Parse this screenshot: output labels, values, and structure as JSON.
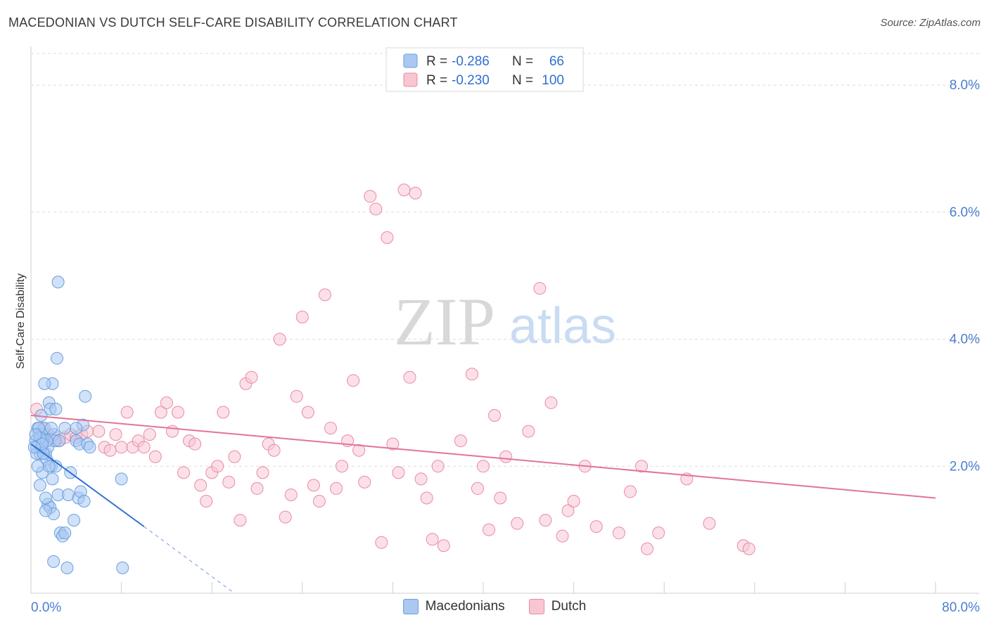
{
  "header": {
    "title": "MACEDONIAN VS DUTCH SELF-CARE DISABILITY CORRELATION CHART",
    "source": "Source: ZipAtlas.com"
  },
  "watermark": {
    "zip": "ZIP",
    "atlas": "atlas"
  },
  "legend_top": [
    {
      "r_label": "R =",
      "r_value": "-0.286",
      "n_label": "N =",
      "n_value": "66",
      "color": "#7fb0ea"
    },
    {
      "r_label": "R =",
      "r_value": "-0.230",
      "n_label": "N =",
      "n_value": "100",
      "color": "#f4a6bd"
    }
  ],
  "legend_bottom": [
    {
      "label": "Macedonians",
      "color": "#a9c8f2"
    },
    {
      "label": "Dutch",
      "color": "#f8c6d3"
    }
  ],
  "chart_data": {
    "type": "scatter",
    "xlabel": "",
    "ylabel": "Self-Care Disability",
    "xlim": [
      0,
      80
    ],
    "ylim": [
      0,
      8.5
    ],
    "x_tick_labels": [
      "0.0%",
      "80.0%"
    ],
    "y_ticks": [
      2,
      4,
      6,
      8
    ],
    "y_tick_labels": [
      "2.0%",
      "4.0%",
      "6.0%",
      "8.0%"
    ],
    "series": [
      {
        "name": "Macedonians",
        "color": "#6a9fe0",
        "fill": "#a9c8f2",
        "trend": {
          "x0": 0.0,
          "y0": 2.35,
          "x1": 10.0,
          "y1": 1.05,
          "dash_to_x": 18.0,
          "dash_to_y": 0.0,
          "line_color": "#2f6fd1"
        },
        "points": [
          [
            0.4,
            2.4
          ],
          [
            0.6,
            2.6
          ],
          [
            0.5,
            2.3
          ],
          [
            0.7,
            2.5
          ],
          [
            0.8,
            2.2
          ],
          [
            0.9,
            2.8
          ],
          [
            1.0,
            2.4
          ],
          [
            1.1,
            2.5
          ],
          [
            1.2,
            2.6
          ],
          [
            1.3,
            2.2
          ],
          [
            1.4,
            2.1
          ],
          [
            1.5,
            2.3
          ],
          [
            1.6,
            3.0
          ],
          [
            1.7,
            2.9
          ],
          [
            1.8,
            2.0
          ],
          [
            1.9,
            3.3
          ],
          [
            2.0,
            2.5
          ],
          [
            2.1,
            2.4
          ],
          [
            2.2,
            2.0
          ],
          [
            2.3,
            3.7
          ],
          [
            2.5,
            2.4
          ],
          [
            0.5,
            2.2
          ],
          [
            0.7,
            2.6
          ],
          [
            0.9,
            2.3
          ],
          [
            1.2,
            3.3
          ],
          [
            1.0,
            1.9
          ],
          [
            0.8,
            1.7
          ],
          [
            1.5,
            1.4
          ],
          [
            1.7,
            1.35
          ],
          [
            1.9,
            1.8
          ],
          [
            2.0,
            1.25
          ],
          [
            2.4,
            1.55
          ],
          [
            2.6,
            0.95
          ],
          [
            2.8,
            0.9
          ],
          [
            3.0,
            0.95
          ],
          [
            3.2,
            0.4
          ],
          [
            2.0,
            0.5
          ],
          [
            1.3,
            1.5
          ],
          [
            1.1,
            2.2
          ],
          [
            1.4,
            2.4
          ],
          [
            1.6,
            2.0
          ],
          [
            1.8,
            2.6
          ],
          [
            2.2,
            2.9
          ],
          [
            2.4,
            4.9
          ],
          [
            3.0,
            2.6
          ],
          [
            3.3,
            1.55
          ],
          [
            3.5,
            1.9
          ],
          [
            3.8,
            1.15
          ],
          [
            4.0,
            2.4
          ],
          [
            4.2,
            1.5
          ],
          [
            4.3,
            2.35
          ],
          [
            4.4,
            1.6
          ],
          [
            4.6,
            2.65
          ],
          [
            4.7,
            1.45
          ],
          [
            4.8,
            3.1
          ],
          [
            5.0,
            2.35
          ],
          [
            5.2,
            2.3
          ],
          [
            8.0,
            1.8
          ],
          [
            8.1,
            0.4
          ],
          [
            1.3,
            1.3
          ],
          [
            0.6,
            2.0
          ],
          [
            0.8,
            2.45
          ],
          [
            1.0,
            2.35
          ],
          [
            0.4,
            2.5
          ],
          [
            0.3,
            2.3
          ],
          [
            4.0,
            2.6
          ]
        ]
      },
      {
        "name": "Dutch",
        "color": "#e98aa6",
        "fill": "#f8c6d3",
        "trend": {
          "x0": 0.0,
          "y0": 2.8,
          "x1": 80.0,
          "y1": 1.5,
          "line_color": "#e4739a"
        },
        "points": [
          [
            0.5,
            2.9
          ],
          [
            1.0,
            2.6
          ],
          [
            1.5,
            2.5
          ],
          [
            2.0,
            2.45
          ],
          [
            2.5,
            2.4
          ],
          [
            3.0,
            2.45
          ],
          [
            3.5,
            2.5
          ],
          [
            4.0,
            2.45
          ],
          [
            4.5,
            2.5
          ],
          [
            5.0,
            2.55
          ],
          [
            6.0,
            2.55
          ],
          [
            6.5,
            2.3
          ],
          [
            7.0,
            2.25
          ],
          [
            7.5,
            2.5
          ],
          [
            8.0,
            2.3
          ],
          [
            8.5,
            2.85
          ],
          [
            9.0,
            2.3
          ],
          [
            9.5,
            2.4
          ],
          [
            10.0,
            2.3
          ],
          [
            10.5,
            2.5
          ],
          [
            11.0,
            2.15
          ],
          [
            11.5,
            2.85
          ],
          [
            12.0,
            3.0
          ],
          [
            12.5,
            2.55
          ],
          [
            13.0,
            2.85
          ],
          [
            13.5,
            1.9
          ],
          [
            14.0,
            2.4
          ],
          [
            14.5,
            2.35
          ],
          [
            15.0,
            1.7
          ],
          [
            15.5,
            1.45
          ],
          [
            16.0,
            1.9
          ],
          [
            16.5,
            2.0
          ],
          [
            17.0,
            2.85
          ],
          [
            17.5,
            1.75
          ],
          [
            18.0,
            2.15
          ],
          [
            18.5,
            1.15
          ],
          [
            19.0,
            3.3
          ],
          [
            19.5,
            3.4
          ],
          [
            20.0,
            1.65
          ],
          [
            20.5,
            1.9
          ],
          [
            21.0,
            2.35
          ],
          [
            21.5,
            2.25
          ],
          [
            22.0,
            4.0
          ],
          [
            22.5,
            1.2
          ],
          [
            23.0,
            1.55
          ],
          [
            23.5,
            3.1
          ],
          [
            24.0,
            4.35
          ],
          [
            24.5,
            2.85
          ],
          [
            25.0,
            1.7
          ],
          [
            25.5,
            1.45
          ],
          [
            26.0,
            4.7
          ],
          [
            26.5,
            2.6
          ],
          [
            27.0,
            1.65
          ],
          [
            27.5,
            2.0
          ],
          [
            28.0,
            2.4
          ],
          [
            28.5,
            3.35
          ],
          [
            29.0,
            2.25
          ],
          [
            29.5,
            1.75
          ],
          [
            30.0,
            6.25
          ],
          [
            30.5,
            6.05
          ],
          [
            31.0,
            0.8
          ],
          [
            31.5,
            5.6
          ],
          [
            32.0,
            2.35
          ],
          [
            32.5,
            1.9
          ],
          [
            33.0,
            6.35
          ],
          [
            33.5,
            3.4
          ],
          [
            34.0,
            6.3
          ],
          [
            34.5,
            1.8
          ],
          [
            35.0,
            1.5
          ],
          [
            35.5,
            0.85
          ],
          [
            36.0,
            2.0
          ],
          [
            36.5,
            0.75
          ],
          [
            38.0,
            2.4
          ],
          [
            39.0,
            3.45
          ],
          [
            39.5,
            1.65
          ],
          [
            40.0,
            2.0
          ],
          [
            40.5,
            1.0
          ],
          [
            41.0,
            2.8
          ],
          [
            41.5,
            1.5
          ],
          [
            42.0,
            2.15
          ],
          [
            43.0,
            1.1
          ],
          [
            44.0,
            2.55
          ],
          [
            45.0,
            4.8
          ],
          [
            45.5,
            1.15
          ],
          [
            46.0,
            3.0
          ],
          [
            47.0,
            0.9
          ],
          [
            47.5,
            1.3
          ],
          [
            48.0,
            1.45
          ],
          [
            49.0,
            2.0
          ],
          [
            50.0,
            1.05
          ],
          [
            52.0,
            0.95
          ],
          [
            53.0,
            1.6
          ],
          [
            54.0,
            2.0
          ],
          [
            54.5,
            0.7
          ],
          [
            55.5,
            0.95
          ],
          [
            58.0,
            1.8
          ],
          [
            60.0,
            1.1
          ],
          [
            63.0,
            0.75
          ],
          [
            63.5,
            0.7
          ],
          [
            2.2,
            2.4
          ]
        ]
      }
    ]
  }
}
